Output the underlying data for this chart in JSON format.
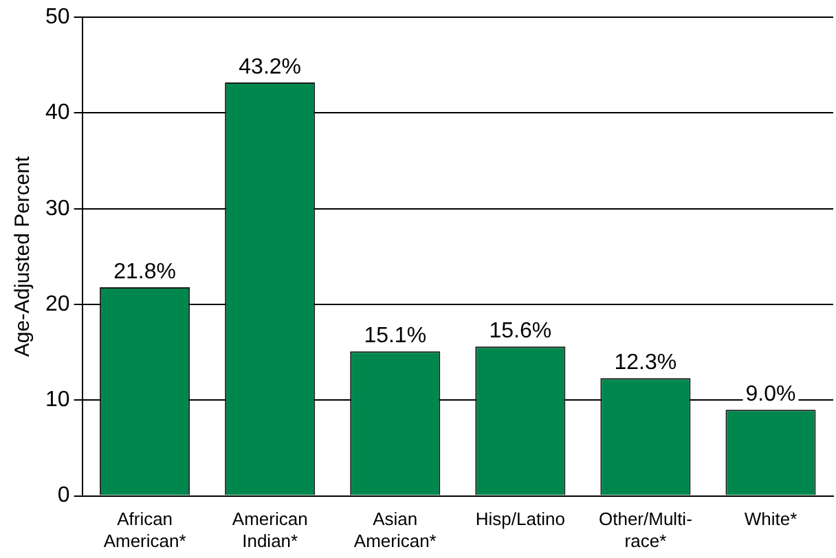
{
  "chart_data": {
    "type": "bar",
    "ylabel": "Age-Adjusted Percent",
    "categories": [
      "African\nAmerican*",
      "American\nIndian*",
      "Asian\nAmerican*",
      "Hisp/Latino",
      "Other/Multi-\nrace*",
      "White*"
    ],
    "values": [
      21.8,
      43.2,
      15.1,
      15.6,
      12.3,
      9.0
    ],
    "value_labels": [
      "21.8%",
      "43.2%",
      "15.1%",
      "15.6%",
      "12.3%",
      "9.0%"
    ],
    "color": "#00874d",
    "ylim": [
      0,
      50
    ],
    "yticks": [
      0,
      10,
      20,
      30,
      40,
      50
    ],
    "grid": "y",
    "legend": false
  }
}
